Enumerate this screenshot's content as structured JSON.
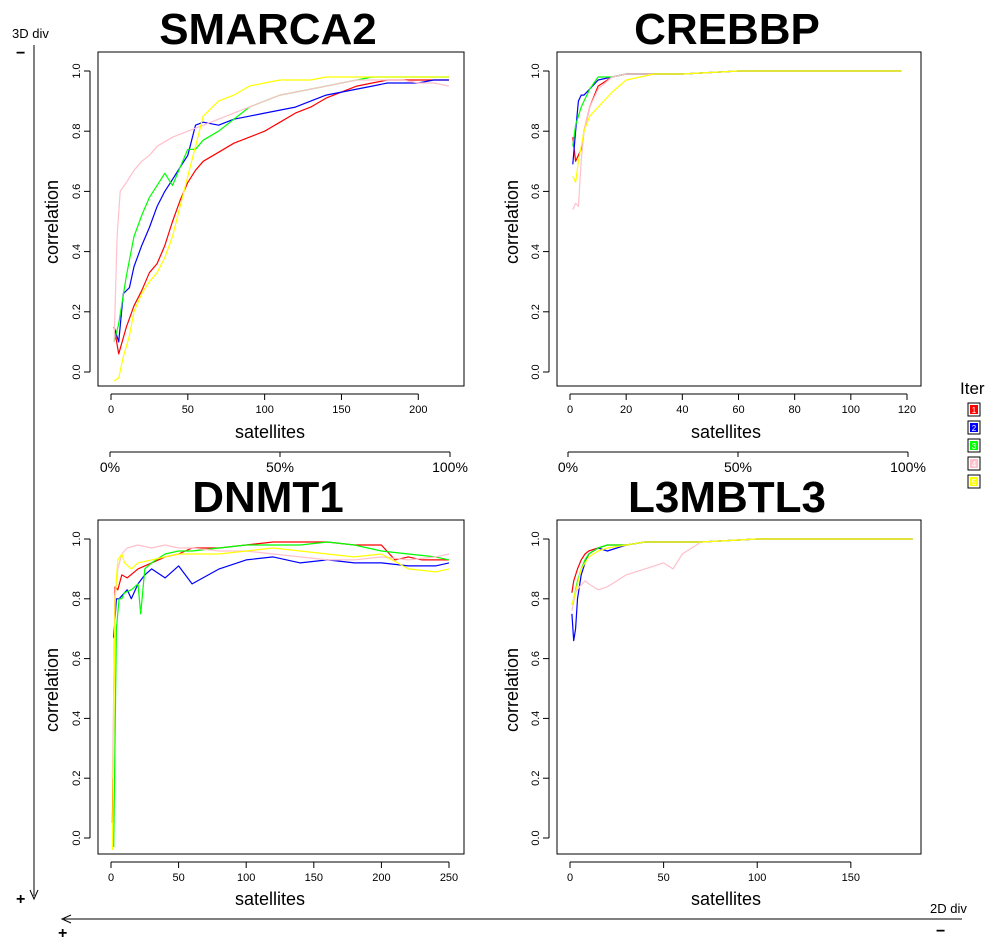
{
  "figure": {
    "vertical_axis_label": "3D div",
    "vertical_axis_top": "−",
    "vertical_axis_bottom": "+",
    "horizontal_axis_label": "2D div",
    "horizontal_axis_left": "+",
    "horizontal_axis_right": "−",
    "percent_ticks": [
      "0%",
      "50%",
      "100%"
    ]
  },
  "legend": {
    "title": "Iter",
    "entries": [
      {
        "label": "1",
        "color": "#ff0000"
      },
      {
        "label": "2",
        "color": "#0000ff"
      },
      {
        "label": "3",
        "color": "#00ff00"
      },
      {
        "label": "4",
        "color": "#ffc0cb"
      },
      {
        "label": "5",
        "color": "#ffff00"
      }
    ]
  },
  "chart_data": [
    {
      "type": "line",
      "title": "SMARCA2",
      "xlabel": "satellites",
      "ylabel": "correlation",
      "xlim": [
        0,
        220
      ],
      "ylim": [
        0,
        1
      ],
      "xticks": [
        0,
        50,
        100,
        150,
        200
      ],
      "yticks": [
        0.0,
        0.2,
        0.4,
        0.6,
        0.8,
        1.0
      ],
      "grid": false,
      "series": [
        {
          "color": "#ff0000",
          "x": [
            2,
            5,
            10,
            15,
            20,
            25,
            30,
            35,
            40,
            45,
            50,
            55,
            60,
            70,
            80,
            90,
            100,
            110,
            120,
            130,
            140,
            150,
            160,
            170,
            180,
            190,
            200,
            210,
            220
          ],
          "y": [
            0.15,
            0.06,
            0.15,
            0.22,
            0.27,
            0.33,
            0.36,
            0.42,
            0.5,
            0.57,
            0.63,
            0.67,
            0.7,
            0.73,
            0.76,
            0.78,
            0.8,
            0.83,
            0.86,
            0.88,
            0.91,
            0.93,
            0.95,
            0.96,
            0.97,
            0.97,
            0.97,
            0.97,
            0.97
          ]
        },
        {
          "color": "#0000ff",
          "x": [
            2,
            5,
            8,
            12,
            15,
            20,
            25,
            30,
            35,
            40,
            45,
            50,
            55,
            60,
            70,
            80,
            90,
            100,
            110,
            120,
            130,
            140,
            150,
            160,
            170,
            180,
            190,
            200,
            210,
            220
          ],
          "y": [
            0.15,
            0.1,
            0.26,
            0.28,
            0.35,
            0.42,
            0.48,
            0.55,
            0.6,
            0.64,
            0.68,
            0.72,
            0.82,
            0.83,
            0.82,
            0.84,
            0.85,
            0.86,
            0.87,
            0.88,
            0.9,
            0.92,
            0.93,
            0.94,
            0.95,
            0.96,
            0.96,
            0.96,
            0.97,
            0.97
          ]
        },
        {
          "color": "#00ff00",
          "x": [
            2,
            5,
            10,
            15,
            20,
            25,
            30,
            35,
            40,
            45,
            50,
            55,
            60,
            70,
            80,
            90,
            100,
            110,
            120,
            130,
            140,
            150,
            160,
            170,
            180,
            190,
            200,
            210,
            220
          ],
          "y": [
            0.1,
            0.16,
            0.32,
            0.45,
            0.52,
            0.58,
            0.62,
            0.66,
            0.62,
            0.68,
            0.74,
            0.74,
            0.77,
            0.8,
            0.84,
            0.88,
            0.9,
            0.92,
            0.93,
            0.94,
            0.95,
            0.96,
            0.97,
            0.98,
            0.98,
            0.98,
            0.98,
            0.98,
            0.98
          ]
        },
        {
          "color": "#ffc0cb",
          "x": [
            2,
            4,
            6,
            10,
            15,
            20,
            25,
            30,
            40,
            50,
            60,
            70,
            80,
            90,
            100,
            110,
            120,
            130,
            140,
            150,
            160,
            170,
            180,
            190,
            200,
            210,
            220
          ],
          "y": [
            0.1,
            0.45,
            0.6,
            0.63,
            0.67,
            0.7,
            0.72,
            0.75,
            0.78,
            0.8,
            0.82,
            0.84,
            0.86,
            0.88,
            0.9,
            0.92,
            0.93,
            0.94,
            0.95,
            0.96,
            0.97,
            0.97,
            0.97,
            0.97,
            0.96,
            0.96,
            0.95
          ]
        },
        {
          "color": "#ffff00",
          "x": [
            2,
            5,
            8,
            12,
            15,
            20,
            25,
            30,
            35,
            40,
            45,
            50,
            55,
            60,
            70,
            80,
            90,
            100,
            110,
            120,
            130,
            140,
            150,
            160,
            170,
            180,
            190,
            200,
            210,
            220
          ],
          "y": [
            -0.03,
            -0.02,
            0.05,
            0.12,
            0.2,
            0.26,
            0.3,
            0.33,
            0.38,
            0.45,
            0.55,
            0.65,
            0.75,
            0.85,
            0.9,
            0.92,
            0.95,
            0.96,
            0.97,
            0.97,
            0.97,
            0.98,
            0.98,
            0.98,
            0.98,
            0.98,
            0.98,
            0.98,
            0.98,
            0.98
          ]
        }
      ]
    },
    {
      "type": "line",
      "title": "CREBBP",
      "xlabel": "satellites",
      "ylabel": "correlation",
      "xlim": [
        0,
        120
      ],
      "ylim": [
        0,
        1
      ],
      "xticks": [
        0,
        20,
        40,
        60,
        80,
        100,
        120
      ],
      "yticks": [
        0.0,
        0.2,
        0.4,
        0.6,
        0.8,
        1.0
      ],
      "grid": false,
      "series": [
        {
          "color": "#ff0000",
          "x": [
            1,
            2,
            3,
            4,
            5,
            7,
            10,
            15,
            20,
            30,
            40,
            60,
            80,
            100,
            118
          ],
          "y": [
            0.78,
            0.7,
            0.72,
            0.74,
            0.8,
            0.88,
            0.95,
            0.98,
            0.99,
            0.99,
            0.99,
            1.0,
            1.0,
            1.0,
            1.0
          ]
        },
        {
          "color": "#0000ff",
          "x": [
            1,
            2,
            3,
            4,
            5,
            7,
            10,
            15,
            20,
            30,
            40,
            60,
            80,
            100,
            118
          ],
          "y": [
            0.69,
            0.8,
            0.9,
            0.92,
            0.92,
            0.94,
            0.97,
            0.98,
            0.99,
            0.99,
            0.99,
            1.0,
            1.0,
            1.0,
            1.0
          ]
        },
        {
          "color": "#00ff00",
          "x": [
            1,
            2,
            3,
            4,
            5,
            7,
            10,
            15,
            20,
            30,
            40,
            60,
            80,
            100,
            118
          ],
          "y": [
            0.75,
            0.82,
            0.85,
            0.88,
            0.9,
            0.94,
            0.98,
            0.98,
            0.99,
            0.99,
            0.99,
            1.0,
            1.0,
            1.0,
            1.0
          ]
        },
        {
          "color": "#ffc0cb",
          "x": [
            1,
            2,
            3,
            4,
            5,
            7,
            10,
            15,
            20,
            30,
            40,
            60,
            80,
            100,
            118
          ],
          "y": [
            0.54,
            0.56,
            0.55,
            0.7,
            0.8,
            0.88,
            0.94,
            0.98,
            0.99,
            0.99,
            0.99,
            1.0,
            1.0,
            1.0,
            1.0
          ]
        },
        {
          "color": "#ffff00",
          "x": [
            1,
            2,
            3,
            4,
            5,
            7,
            10,
            15,
            20,
            30,
            40,
            60,
            80,
            100,
            118
          ],
          "y": [
            0.65,
            0.63,
            0.7,
            0.75,
            0.8,
            0.85,
            0.88,
            0.93,
            0.97,
            0.99,
            0.99,
            1.0,
            1.0,
            1.0,
            1.0
          ]
        }
      ]
    },
    {
      "type": "line",
      "title": "DNMT1",
      "xlabel": "satellites",
      "ylabel": "correlation",
      "xlim": [
        0,
        250
      ],
      "ylim": [
        0,
        1
      ],
      "xticks": [
        0,
        50,
        100,
        150,
        200,
        250
      ],
      "yticks": [
        0.0,
        0.2,
        0.4,
        0.6,
        0.8,
        1.0
      ],
      "grid": false,
      "series": [
        {
          "color": "#ff0000",
          "x": [
            1,
            3,
            5,
            8,
            12,
            20,
            30,
            40,
            50,
            60,
            80,
            100,
            120,
            140,
            160,
            180,
            200,
            210,
            220,
            230,
            240,
            250
          ],
          "y": [
            0.05,
            0.84,
            0.83,
            0.88,
            0.87,
            0.9,
            0.92,
            0.94,
            0.95,
            0.97,
            0.97,
            0.98,
            0.99,
            0.99,
            0.99,
            0.98,
            0.98,
            0.93,
            0.94,
            0.93,
            0.93,
            0.93
          ]
        },
        {
          "color": "#0000ff",
          "x": [
            2,
            4,
            6,
            8,
            12,
            15,
            20,
            25,
            30,
            40,
            50,
            60,
            80,
            100,
            120,
            140,
            160,
            180,
            200,
            220,
            240,
            250
          ],
          "y": [
            0.67,
            0.8,
            0.8,
            0.81,
            0.83,
            0.8,
            0.85,
            0.88,
            0.9,
            0.87,
            0.91,
            0.85,
            0.9,
            0.93,
            0.94,
            0.92,
            0.93,
            0.92,
            0.92,
            0.91,
            0.91,
            0.92
          ]
        },
        {
          "color": "#00ff00",
          "x": [
            2,
            4,
            6,
            8,
            10,
            15,
            20,
            22,
            25,
            30,
            40,
            50,
            60,
            80,
            100,
            120,
            140,
            160,
            180,
            200,
            220,
            240,
            250
          ],
          "y": [
            -0.03,
            0.7,
            0.8,
            0.8,
            0.82,
            0.83,
            0.85,
            0.75,
            0.9,
            0.92,
            0.95,
            0.96,
            0.96,
            0.97,
            0.98,
            0.98,
            0.98,
            0.99,
            0.98,
            0.96,
            0.95,
            0.94,
            0.93
          ]
        },
        {
          "color": "#ffc0cb",
          "x": [
            1,
            3,
            5,
            8,
            12,
            20,
            30,
            40,
            50,
            60,
            80,
            100,
            120,
            140,
            160,
            180,
            200,
            220,
            240,
            250
          ],
          "y": [
            0.2,
            0.8,
            0.9,
            0.95,
            0.97,
            0.98,
            0.97,
            0.98,
            0.97,
            0.97,
            0.96,
            0.96,
            0.95,
            0.94,
            0.93,
            0.93,
            0.94,
            0.93,
            0.94,
            0.95
          ]
        },
        {
          "color": "#ffff00",
          "x": [
            1,
            3,
            5,
            8,
            10,
            15,
            20,
            30,
            40,
            50,
            60,
            80,
            100,
            120,
            140,
            160,
            180,
            200,
            220,
            240,
            250
          ],
          "y": [
            -0.04,
            0.8,
            0.93,
            0.95,
            0.92,
            0.9,
            0.92,
            0.93,
            0.94,
            0.95,
            0.95,
            0.95,
            0.96,
            0.97,
            0.96,
            0.95,
            0.94,
            0.95,
            0.9,
            0.89,
            0.9
          ]
        }
      ]
    },
    {
      "type": "line",
      "title": "L3MBTL3",
      "xlabel": "satellites",
      "ylabel": "correlation",
      "xlim": [
        0,
        180
      ],
      "ylim": [
        0,
        1
      ],
      "xticks": [
        0,
        50,
        100,
        150
      ],
      "yticks": [
        0.0,
        0.2,
        0.4,
        0.6,
        0.8,
        1.0
      ],
      "grid": false,
      "series": [
        {
          "color": "#ff0000",
          "x": [
            1,
            2,
            4,
            6,
            8,
            10,
            15,
            20,
            30,
            40,
            50,
            70,
            100,
            130,
            160,
            183
          ],
          "y": [
            0.82,
            0.86,
            0.9,
            0.93,
            0.95,
            0.96,
            0.97,
            0.98,
            0.98,
            0.99,
            0.99,
            0.99,
            1.0,
            1.0,
            1.0,
            1.0
          ]
        },
        {
          "color": "#0000ff",
          "x": [
            1,
            2,
            3,
            4,
            6,
            8,
            10,
            15,
            20,
            30,
            40,
            50,
            70,
            100,
            130,
            160,
            183
          ],
          "y": [
            0.75,
            0.66,
            0.7,
            0.8,
            0.88,
            0.92,
            0.95,
            0.97,
            0.96,
            0.98,
            0.99,
            0.99,
            0.99,
            1.0,
            1.0,
            1.0,
            1.0
          ]
        },
        {
          "color": "#00ff00",
          "x": [
            1,
            2,
            4,
            6,
            8,
            10,
            15,
            20,
            30,
            40,
            50,
            70,
            100,
            130,
            160,
            183
          ],
          "y": [
            0.78,
            0.8,
            0.86,
            0.9,
            0.93,
            0.95,
            0.97,
            0.98,
            0.98,
            0.99,
            0.99,
            0.99,
            1.0,
            1.0,
            1.0,
            1.0
          ]
        },
        {
          "color": "#ffc0cb",
          "x": [
            1,
            3,
            5,
            8,
            10,
            15,
            20,
            25,
            30,
            40,
            50,
            55,
            60,
            70,
            100,
            130,
            160,
            183
          ],
          "y": [
            0.76,
            0.82,
            0.84,
            0.86,
            0.85,
            0.83,
            0.84,
            0.86,
            0.88,
            0.9,
            0.92,
            0.9,
            0.95,
            0.99,
            1.0,
            1.0,
            1.0,
            1.0
          ]
        },
        {
          "color": "#ffff00",
          "x": [
            1,
            2,
            4,
            6,
            8,
            10,
            15,
            20,
            30,
            40,
            50,
            70,
            100,
            130,
            160,
            183
          ],
          "y": [
            0.78,
            0.8,
            0.85,
            0.9,
            0.92,
            0.94,
            0.96,
            0.97,
            0.98,
            0.99,
            0.99,
            0.99,
            1.0,
            1.0,
            1.0,
            1.0
          ]
        }
      ]
    }
  ]
}
